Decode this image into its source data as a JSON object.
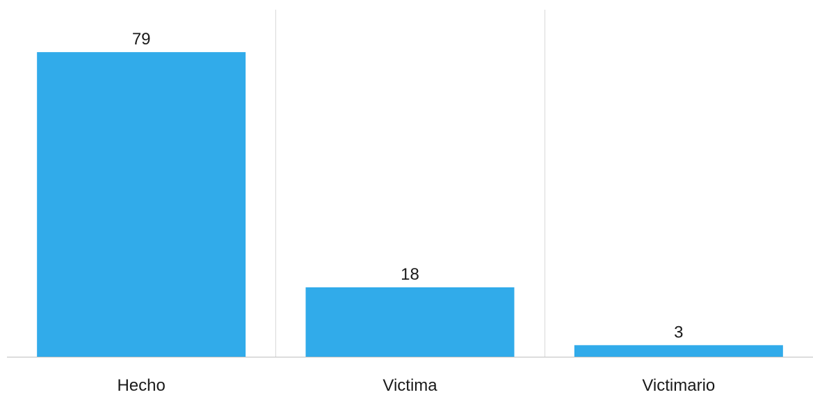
{
  "chart_data": {
    "type": "bar",
    "categories": [
      "Hecho",
      "Victima",
      "Victimario"
    ],
    "values": [
      79,
      18,
      3
    ],
    "data_labels": [
      "79",
      "18",
      "3"
    ],
    "title": "",
    "xlabel": "",
    "ylabel": "",
    "ylim": [
      0,
      90
    ],
    "grid": "vertical category separators",
    "legend": "none",
    "colors": {
      "bar": "#31ABEA",
      "grid": "#d9d9d9",
      "axis": "#bfbfbf",
      "text": "#1a1a1a"
    }
  }
}
